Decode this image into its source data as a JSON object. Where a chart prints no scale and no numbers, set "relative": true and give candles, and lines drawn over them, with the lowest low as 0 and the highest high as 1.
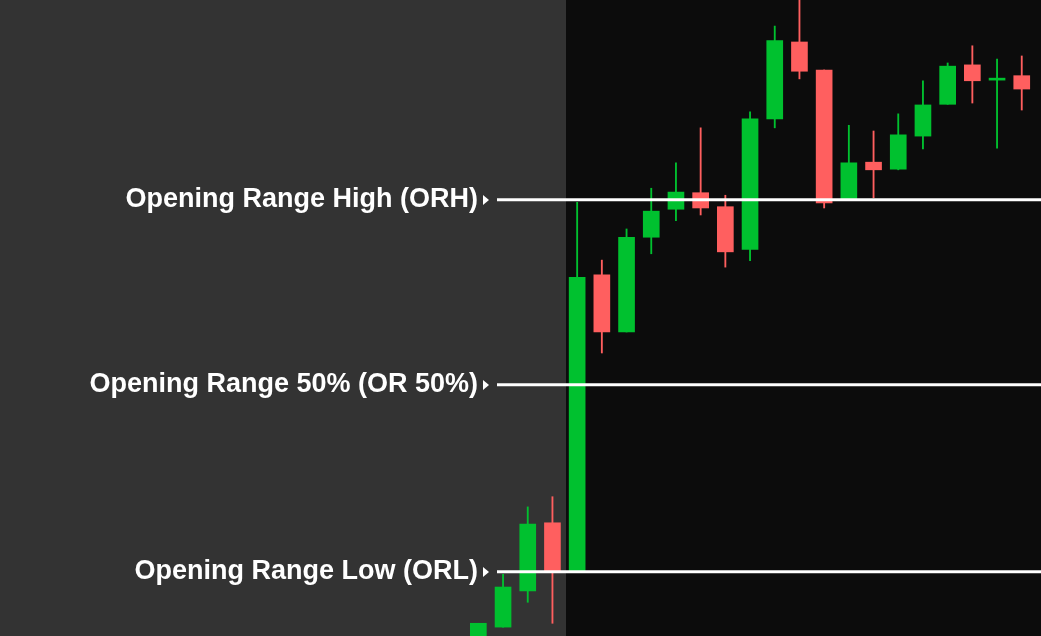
{
  "chart_data": {
    "type": "candlestick",
    "relative": true,
    "legend": false,
    "categories": [
      null,
      null,
      null,
      null,
      null,
      null,
      null,
      null,
      null,
      null,
      null,
      null,
      null,
      null,
      null,
      null,
      null,
      null,
      null,
      null,
      null,
      null,
      null
    ],
    "ohlc": [
      [
        0,
        0.02,
        0,
        0.02
      ],
      [
        0.014,
        0.097,
        0.014,
        0.077
      ],
      [
        0.071,
        0.203,
        0.053,
        0.176
      ],
      [
        0.178,
        0.219,
        0.02,
        0.101
      ],
      [
        0.101,
        0.682,
        0.101,
        0.564
      ],
      [
        0.568,
        0.591,
        0.445,
        0.478
      ],
      [
        0.478,
        0.64,
        0.478,
        0.627
      ],
      [
        0.627,
        0.704,
        0.601,
        0.668
      ],
      [
        0.671,
        0.744,
        0.653,
        0.698
      ],
      [
        0.697,
        0.799,
        0.662,
        0.673
      ],
      [
        0.675,
        0.693,
        0.58,
        0.604
      ],
      [
        0.608,
        0.824,
        0.59,
        0.813
      ],
      [
        0.813,
        0.959,
        0.799,
        0.936
      ],
      [
        0.934,
        1,
        0.876,
        0.888
      ],
      [
        0.89,
        0.89,
        0.673,
        0.681
      ],
      [
        0.687,
        0.803,
        0.687,
        0.744
      ],
      [
        0.745,
        0.794,
        0.689,
        0.733
      ],
      [
        0.734,
        0.821,
        0.733,
        0.788
      ],
      [
        0.786,
        0.873,
        0.766,
        0.835
      ],
      [
        0.836,
        0.901,
        0.836,
        0.896
      ],
      [
        0.898,
        0.928,
        0.838,
        0.873
      ],
      [
        0.874,
        0.907,
        0.767,
        0.876
      ],
      [
        0.881,
        0.912,
        0.827,
        0.86
      ]
    ],
    "colors": [
      "#00c12f",
      "#00c12f",
      "#00c12f",
      "#ff5f5f",
      "#00c12f",
      "#ff5f5f",
      "#00c12f",
      "#00c12f",
      "#00c12f",
      "#ff5f5f",
      "#ff5f5f",
      "#00c12f",
      "#00c12f",
      "#ff5f5f",
      "#ff5f5f",
      "#00c12f",
      "#ff5f5f",
      "#00c12f",
      "#00c12f",
      "#00c12f",
      "#ff5f5f",
      "#00c12f",
      "#ff5f5f"
    ],
    "ref_lines": [
      {
        "axis": "y",
        "value": 0.686,
        "label": "Opening Range High (ORH)",
        "color": "#ffffff"
      },
      {
        "axis": "y",
        "value": 0.395,
        "label": "Opening Range 50% (OR 50%)",
        "color": "#ffffff"
      },
      {
        "axis": "y",
        "value": 0.101,
        "label": "Opening Range Low (ORL)",
        "color": "#ffffff"
      }
    ]
  }
}
